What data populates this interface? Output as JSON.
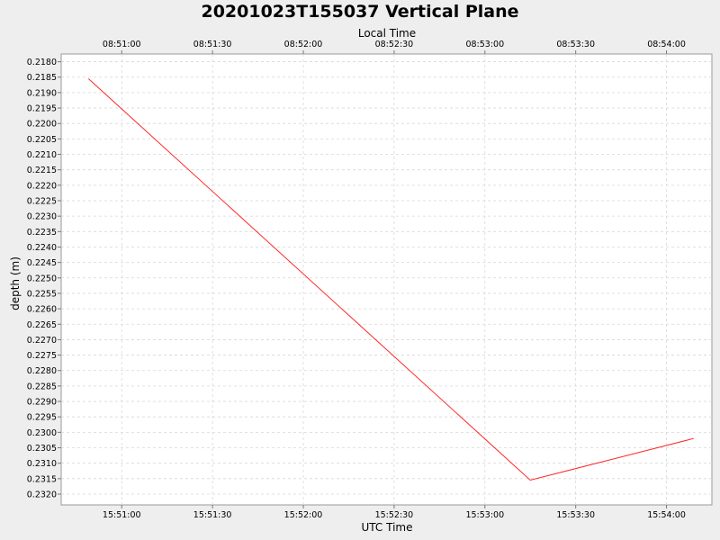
{
  "chart_data": {
    "type": "line",
    "title": "20201023T155037 Vertical Plane",
    "xlabel": "UTC Time",
    "x2label": "Local Time",
    "ylabel": "depth (m)",
    "x_ticks_utc": [
      "15:51:00",
      "15:51:30",
      "15:52:00",
      "15:52:30",
      "15:53:00",
      "15:53:30",
      "15:54:00"
    ],
    "x_ticks_local": [
      "08:51:00",
      "08:51:30",
      "08:52:00",
      "08:52:30",
      "08:53:00",
      "08:53:30",
      "08:54:00"
    ],
    "x_range": [
      "15:50:40",
      "15:54:15"
    ],
    "y_ticks": [
      "0.2180",
      "0.2185",
      "0.2190",
      "0.2195",
      "0.2200",
      "0.2205",
      "0.2210",
      "0.2215",
      "0.2220",
      "0.2225",
      "0.2230",
      "0.2235",
      "0.2240",
      "0.2245",
      "0.2250",
      "0.2255",
      "0.2260",
      "0.2265",
      "0.2270",
      "0.2275",
      "0.2280",
      "0.2285",
      "0.2290",
      "0.2295",
      "0.2300",
      "0.2305",
      "0.2310",
      "0.2315",
      "0.2320"
    ],
    "ylim": [
      0.21775,
      0.23235
    ],
    "y_inverted": true,
    "grid": true,
    "series": [
      {
        "color": "#ff0000",
        "points": [
          {
            "x": "15:50:49",
            "y": 0.21855
          },
          {
            "x": "15:53:15",
            "y": 0.23155
          },
          {
            "x": "15:54:09",
            "y": 0.2302
          }
        ]
      }
    ]
  }
}
